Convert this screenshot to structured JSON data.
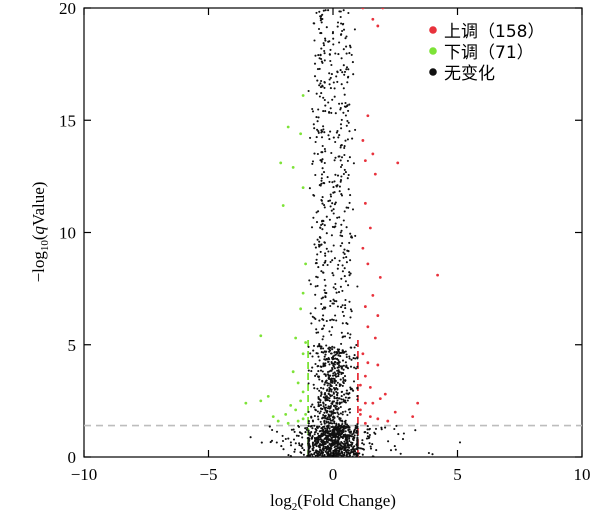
{
  "chart_data": {
    "type": "scatter",
    "title": "",
    "xlabel_main": "log",
    "xlabel_sub": "2",
    "xlabel_rest": "(Fold Change)",
    "ylabel_pre": "−log",
    "ylabel_sub": "10",
    "ylabel_open": "(",
    "ylabel_q": "q",
    "ylabel_rest": "Value)",
    "xlim": [
      -10,
      10
    ],
    "ylim": [
      0,
      20
    ],
    "xticks": [
      -10,
      -5,
      0,
      5,
      10
    ],
    "yticks": [
      0,
      5,
      10,
      15,
      20
    ],
    "xtick_labels": [
      "−10",
      "−5",
      "0",
      "5",
      "10"
    ],
    "ytick_labels": [
      "0",
      "5",
      "10",
      "15",
      "20"
    ],
    "fold_change_thresholds": [
      -1,
      1
    ],
    "significance_threshold": 1.4,
    "grid": false,
    "legend_position": "top-right",
    "series": [
      {
        "name": "上调（158）",
        "color": "#e8323c",
        "n": 158,
        "points_note": "sampled",
        "points": [
          [
            1.2,
            20
          ],
          [
            1.6,
            19.5
          ],
          [
            2,
            20
          ],
          [
            1.8,
            19.2
          ],
          [
            2.6,
            13.1
          ],
          [
            1.6,
            13.5
          ],
          [
            1.3,
            13.2
          ],
          [
            1.7,
            12.6
          ],
          [
            4.2,
            8.1
          ],
          [
            1.4,
            8.6
          ],
          [
            1.9,
            8
          ],
          [
            1.6,
            7.2
          ],
          [
            1.3,
            6.7
          ],
          [
            1.8,
            6.3
          ],
          [
            1.4,
            5.8
          ],
          [
            1.2,
            4.6
          ],
          [
            1.8,
            4.1
          ],
          [
            1.3,
            3.6
          ],
          [
            2.1,
            2.8
          ],
          [
            1.6,
            2.4
          ],
          [
            3.4,
            2.4
          ],
          [
            2.5,
            2
          ],
          [
            1.1,
            2.1
          ],
          [
            1.5,
            1.8
          ],
          [
            2.2,
            1.6
          ],
          [
            3.2,
            1.8
          ],
          [
            1.3,
            2.4
          ],
          [
            1.9,
            2.6
          ],
          [
            1.1,
            3.2
          ],
          [
            1.2,
            9.3
          ],
          [
            1.5,
            10.2
          ],
          [
            1.3,
            11.3
          ],
          [
            1.2,
            14.1
          ],
          [
            1.4,
            15.2
          ],
          [
            1.5,
            3.1
          ],
          [
            1.8,
            1.7
          ],
          [
            1.3,
            1.5
          ],
          [
            1.1,
            1.9
          ],
          [
            1.7,
            5.3
          ],
          [
            1.4,
            4.2
          ]
        ]
      },
      {
        "name": "下调（71）",
        "color": "#7de337",
        "n": 71,
        "points_note": "sampled",
        "points": [
          [
            -1.2,
            16.1
          ],
          [
            -1.3,
            14.4
          ],
          [
            -1.8,
            14.7
          ],
          [
            -2.1,
            13.1
          ],
          [
            -1.6,
            12.9
          ],
          [
            -1.2,
            12
          ],
          [
            -2,
            11.2
          ],
          [
            -1.1,
            8.6
          ],
          [
            -1.2,
            7.3
          ],
          [
            -1.3,
            6.6
          ],
          [
            -2.9,
            5.4
          ],
          [
            -1.5,
            5.3
          ],
          [
            -1.2,
            4.6
          ],
          [
            -1.1,
            5.1
          ],
          [
            -1.4,
            3.3
          ],
          [
            -2.6,
            2.7
          ],
          [
            -1.7,
            2.3
          ],
          [
            -3.5,
            2.4
          ],
          [
            -2.9,
            2.5
          ],
          [
            -1.9,
            1.9
          ],
          [
            -1.2,
            1.7
          ],
          [
            -2.2,
            1.6
          ],
          [
            -1.5,
            2.1
          ],
          [
            -1.3,
            2.5
          ],
          [
            -1.8,
            1.5
          ],
          [
            -1.1,
            1.9
          ],
          [
            -2.4,
            1.8
          ],
          [
            -1.6,
            3.8
          ],
          [
            -1.2,
            2.9
          ],
          [
            -1.4,
            1.6
          ]
        ]
      },
      {
        "name": "无变化",
        "color": "#111111",
        "points_note": "seeded sample matching visible envelope (not read per point)",
        "n_shown": 1800,
        "seed": 7
      }
    ]
  }
}
